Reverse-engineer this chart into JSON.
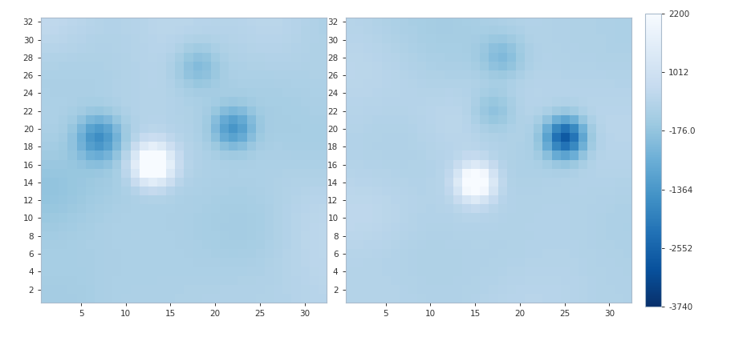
{
  "cmap": "Blues_r",
  "vmin": -3740,
  "vmax": 2200,
  "colorbar_ticks": [
    2200,
    1012,
    -176.0,
    -1364,
    -2552,
    -3740
  ],
  "colorbar_ticklabels": [
    "2200",
    "1012",
    "-176.0",
    "-1364",
    "-2552",
    "-3740"
  ],
  "grid_size": 32,
  "xticks": [
    5,
    10,
    15,
    20,
    25,
    30
  ],
  "yticks": [
    2,
    4,
    6,
    8,
    10,
    12,
    14,
    16,
    18,
    20,
    22,
    24,
    26,
    28,
    30,
    32
  ],
  "figure_facecolor": "#ffffff",
  "ax_facecolor": "#ffffff",
  "spine_color": "#aabbcc"
}
